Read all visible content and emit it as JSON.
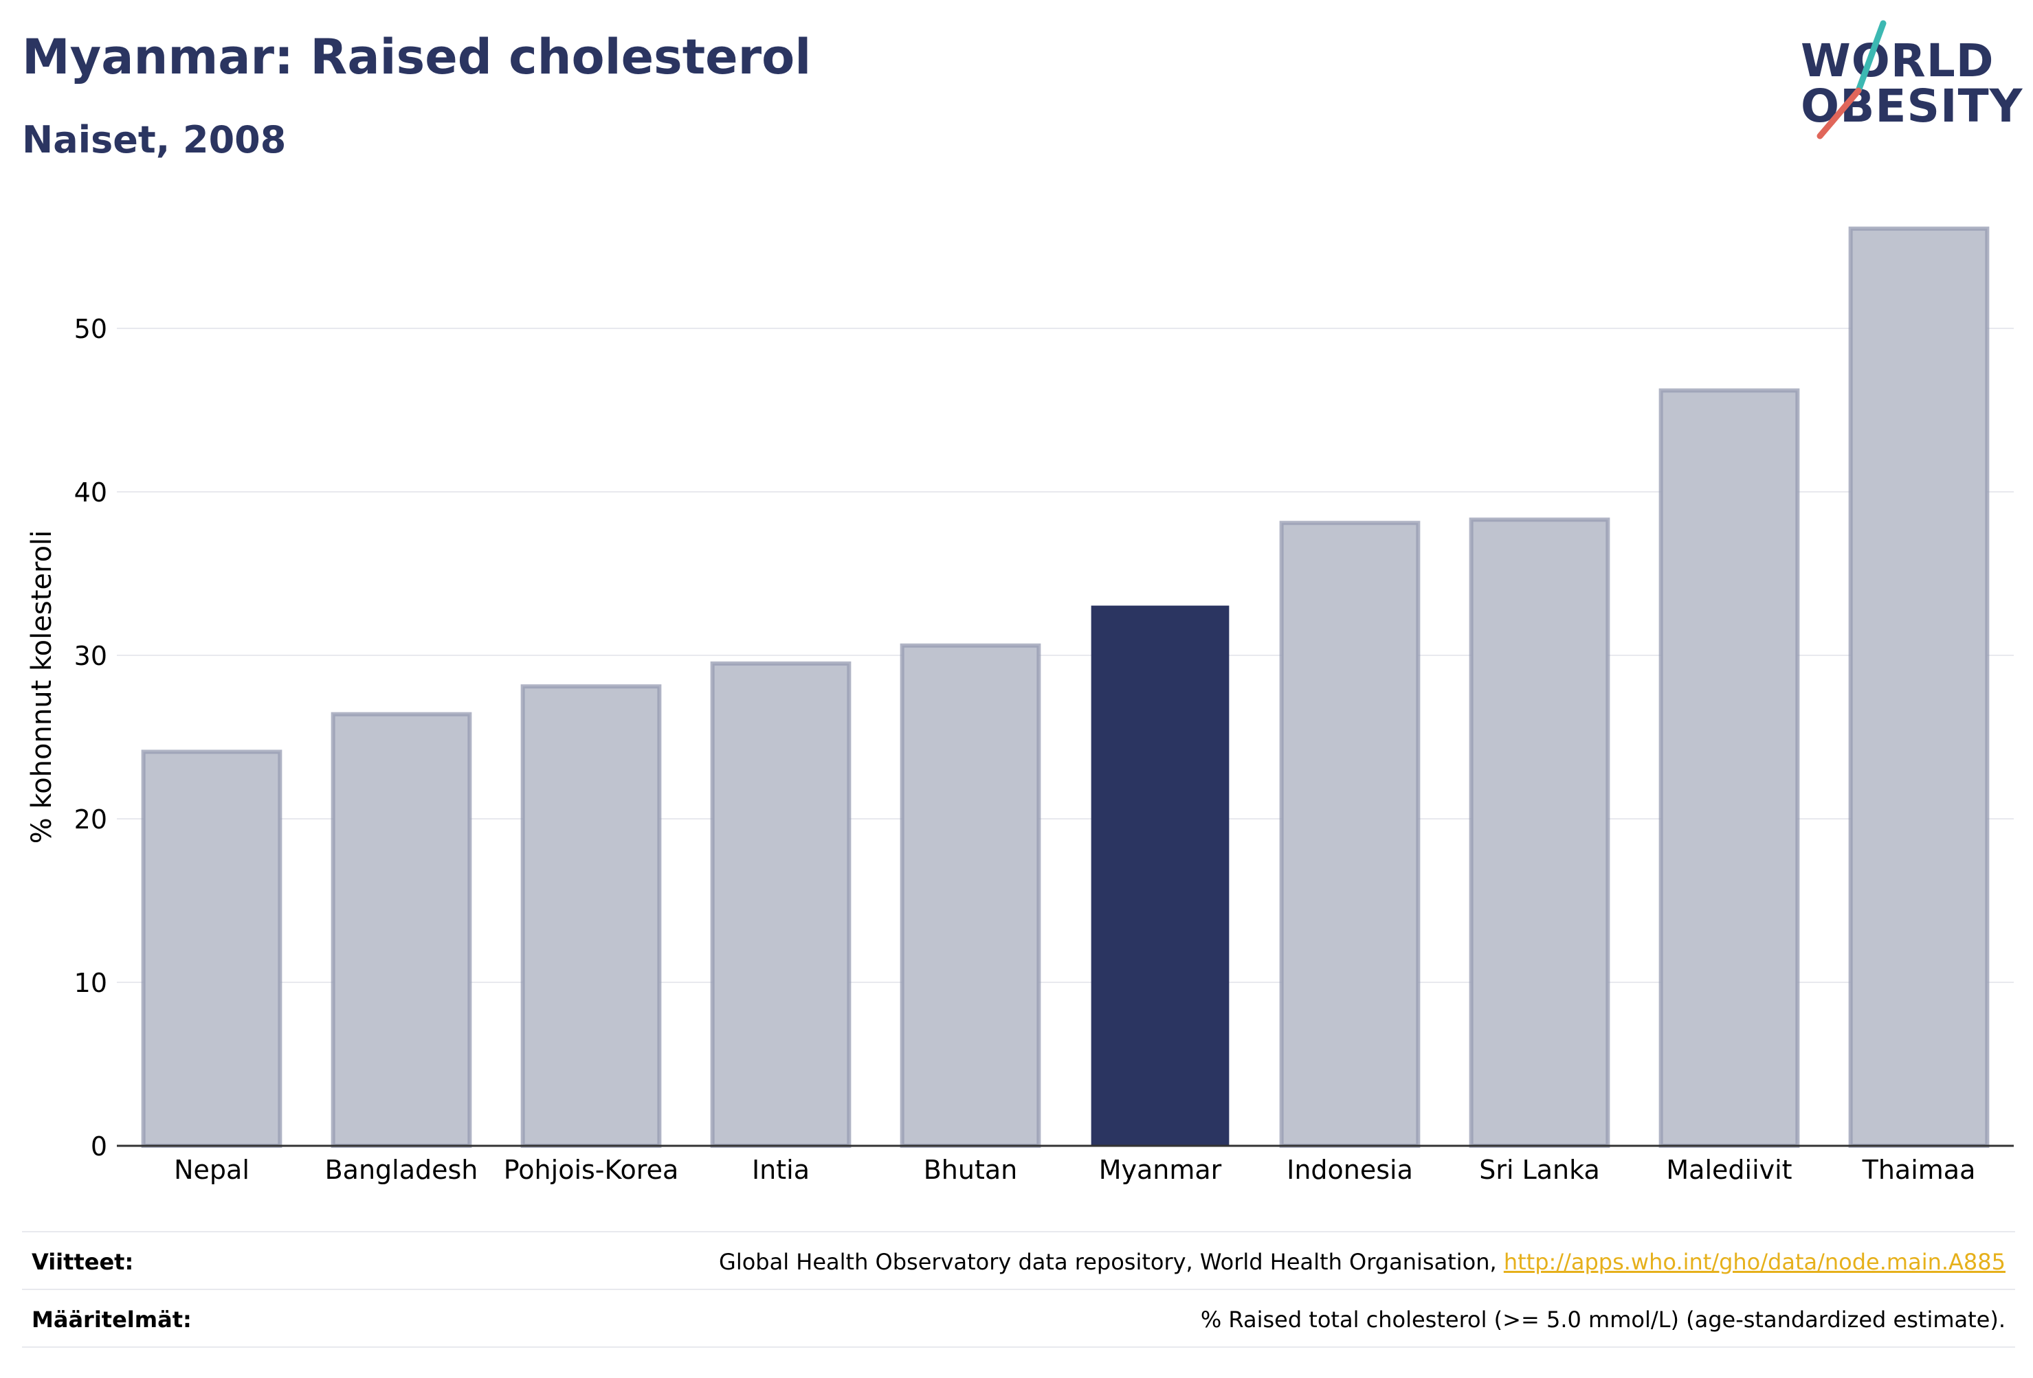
{
  "header": {
    "title": "Myanmar: Raised cholesterol",
    "subtitle": "Naiset, 2008"
  },
  "logo": {
    "line1": "WORLD",
    "line2": "OBESITY",
    "slash_colors": [
      "#3cb8b2",
      "#e0665a"
    ]
  },
  "chart_data": {
    "type": "bar",
    "categories": [
      "Nepal",
      "Bangladesh",
      "Pohjois-Korea",
      "Intia",
      "Bhutan",
      "Myanmar",
      "Indonesia",
      "Sri Lanka",
      "Malediivit",
      "Thaimaa"
    ],
    "values": [
      24.1,
      26.4,
      28.1,
      29.5,
      30.6,
      33.0,
      38.1,
      38.3,
      46.2,
      56.1
    ],
    "highlight": "Myanmar",
    "ylabel": "% kohonnut kolesteroli",
    "xlabel": "",
    "ylim": [
      0,
      60
    ],
    "yticks": [
      0,
      10,
      20,
      30,
      40,
      50
    ],
    "grid": true,
    "colors": {
      "bar": "#bfc3cf",
      "bar_border": "#959bb2",
      "highlight": "#2b3561",
      "grid": "#e8e9ee",
      "axis": "#333333"
    }
  },
  "footer": {
    "sources_label": "Viitteet:",
    "sources_text": "Global Health Observatory data repository, World Health Organisation, ",
    "sources_link": "http://apps.who.int/gho/data/node.main.A885",
    "definitions_label": "Määritelmät:",
    "definitions_text": "% Raised total cholesterol (>= 5.0 mmol/L) (age-standardized estimate)."
  }
}
